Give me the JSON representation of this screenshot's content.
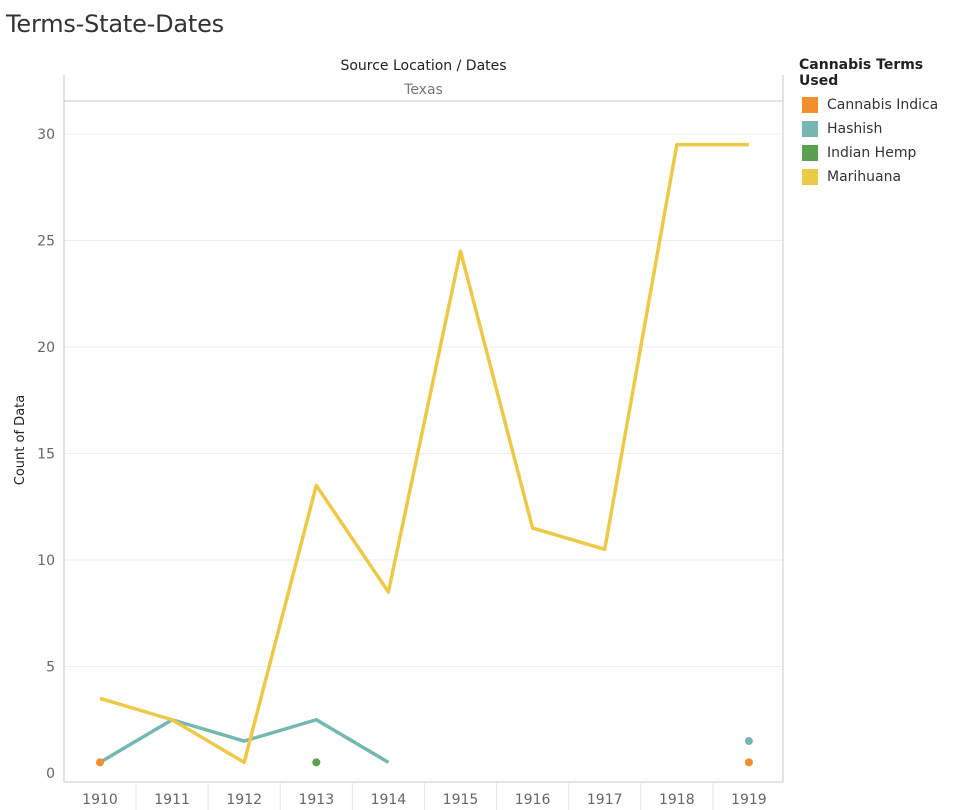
{
  "title": "Terms-State-Dates",
  "chart_data": {
    "type": "line",
    "header_title": "Source Location  /  Dates",
    "pane_label": "Texas",
    "xlabel": "",
    "ylabel": "Count of Data",
    "categories": [
      "1910",
      "1911",
      "1912",
      "1913",
      "1914",
      "1915",
      "1916",
      "1917",
      "1918",
      "1919"
    ],
    "ylim": [
      0,
      32
    ],
    "yticks": [
      0,
      5,
      10,
      15,
      20,
      25,
      30
    ],
    "grid": true,
    "legend_position": "right",
    "legend_title": "Cannabis Terms Used",
    "series": [
      {
        "name": "Cannabis Indica",
        "color": "#F28E2B",
        "values": [
          0.5,
          null,
          null,
          null,
          null,
          null,
          null,
          null,
          null,
          0.5
        ]
      },
      {
        "name": "Hashish",
        "color": "#76B7B2",
        "values": [
          0.5,
          2.5,
          1.5,
          2.5,
          0.5,
          null,
          null,
          null,
          null,
          1.5
        ]
      },
      {
        "name": "Indian Hemp",
        "color": "#59A14F",
        "values": [
          null,
          null,
          null,
          0.5,
          null,
          null,
          null,
          null,
          null,
          null
        ]
      },
      {
        "name": "Marihuana",
        "color": "#EDC948",
        "values": [
          3.5,
          2.5,
          0.5,
          13.5,
          8.5,
          24.5,
          11.5,
          10.5,
          29.5,
          29.5
        ]
      }
    ]
  }
}
